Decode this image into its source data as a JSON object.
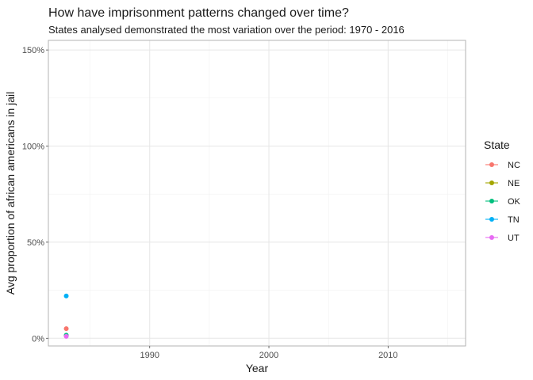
{
  "chart_data": {
    "type": "scatter",
    "title": "How have imprisonment patterns changed over time?",
    "subtitle": "States analysed demonstrated the most variation over the period: 1970 - 2016",
    "xlabel": "Year",
    "ylabel": "Avg proportion of african americans in jail",
    "xlim": [
      1981.5,
      2016.5
    ],
    "ylim": [
      -0.04,
      1.55
    ],
    "x_ticks": [
      1990,
      2000,
      2010
    ],
    "x_tick_labels": [
      "1990",
      "2000",
      "2010"
    ],
    "y_ticks": [
      0,
      0.5,
      1.0,
      1.5
    ],
    "y_tick_labels": [
      "0%",
      "50%",
      "100%",
      "150%"
    ],
    "grid": true,
    "legend": {
      "title": "State",
      "position": "right"
    },
    "series": [
      {
        "name": "NC",
        "color": "#F8766D",
        "points": [
          [
            1983,
            0.05
          ]
        ]
      },
      {
        "name": "NE",
        "color": "#A3A500",
        "points": [
          [
            1983,
            0.013
          ]
        ]
      },
      {
        "name": "OK",
        "color": "#00BF7D",
        "points": [
          [
            1983,
            0.016
          ]
        ]
      },
      {
        "name": "TN",
        "color": "#00B0F6",
        "points": [
          [
            1983,
            0.22
          ]
        ]
      },
      {
        "name": "UT",
        "color": "#E76BF3",
        "points": [
          [
            1983,
            0.01
          ]
        ]
      }
    ]
  }
}
